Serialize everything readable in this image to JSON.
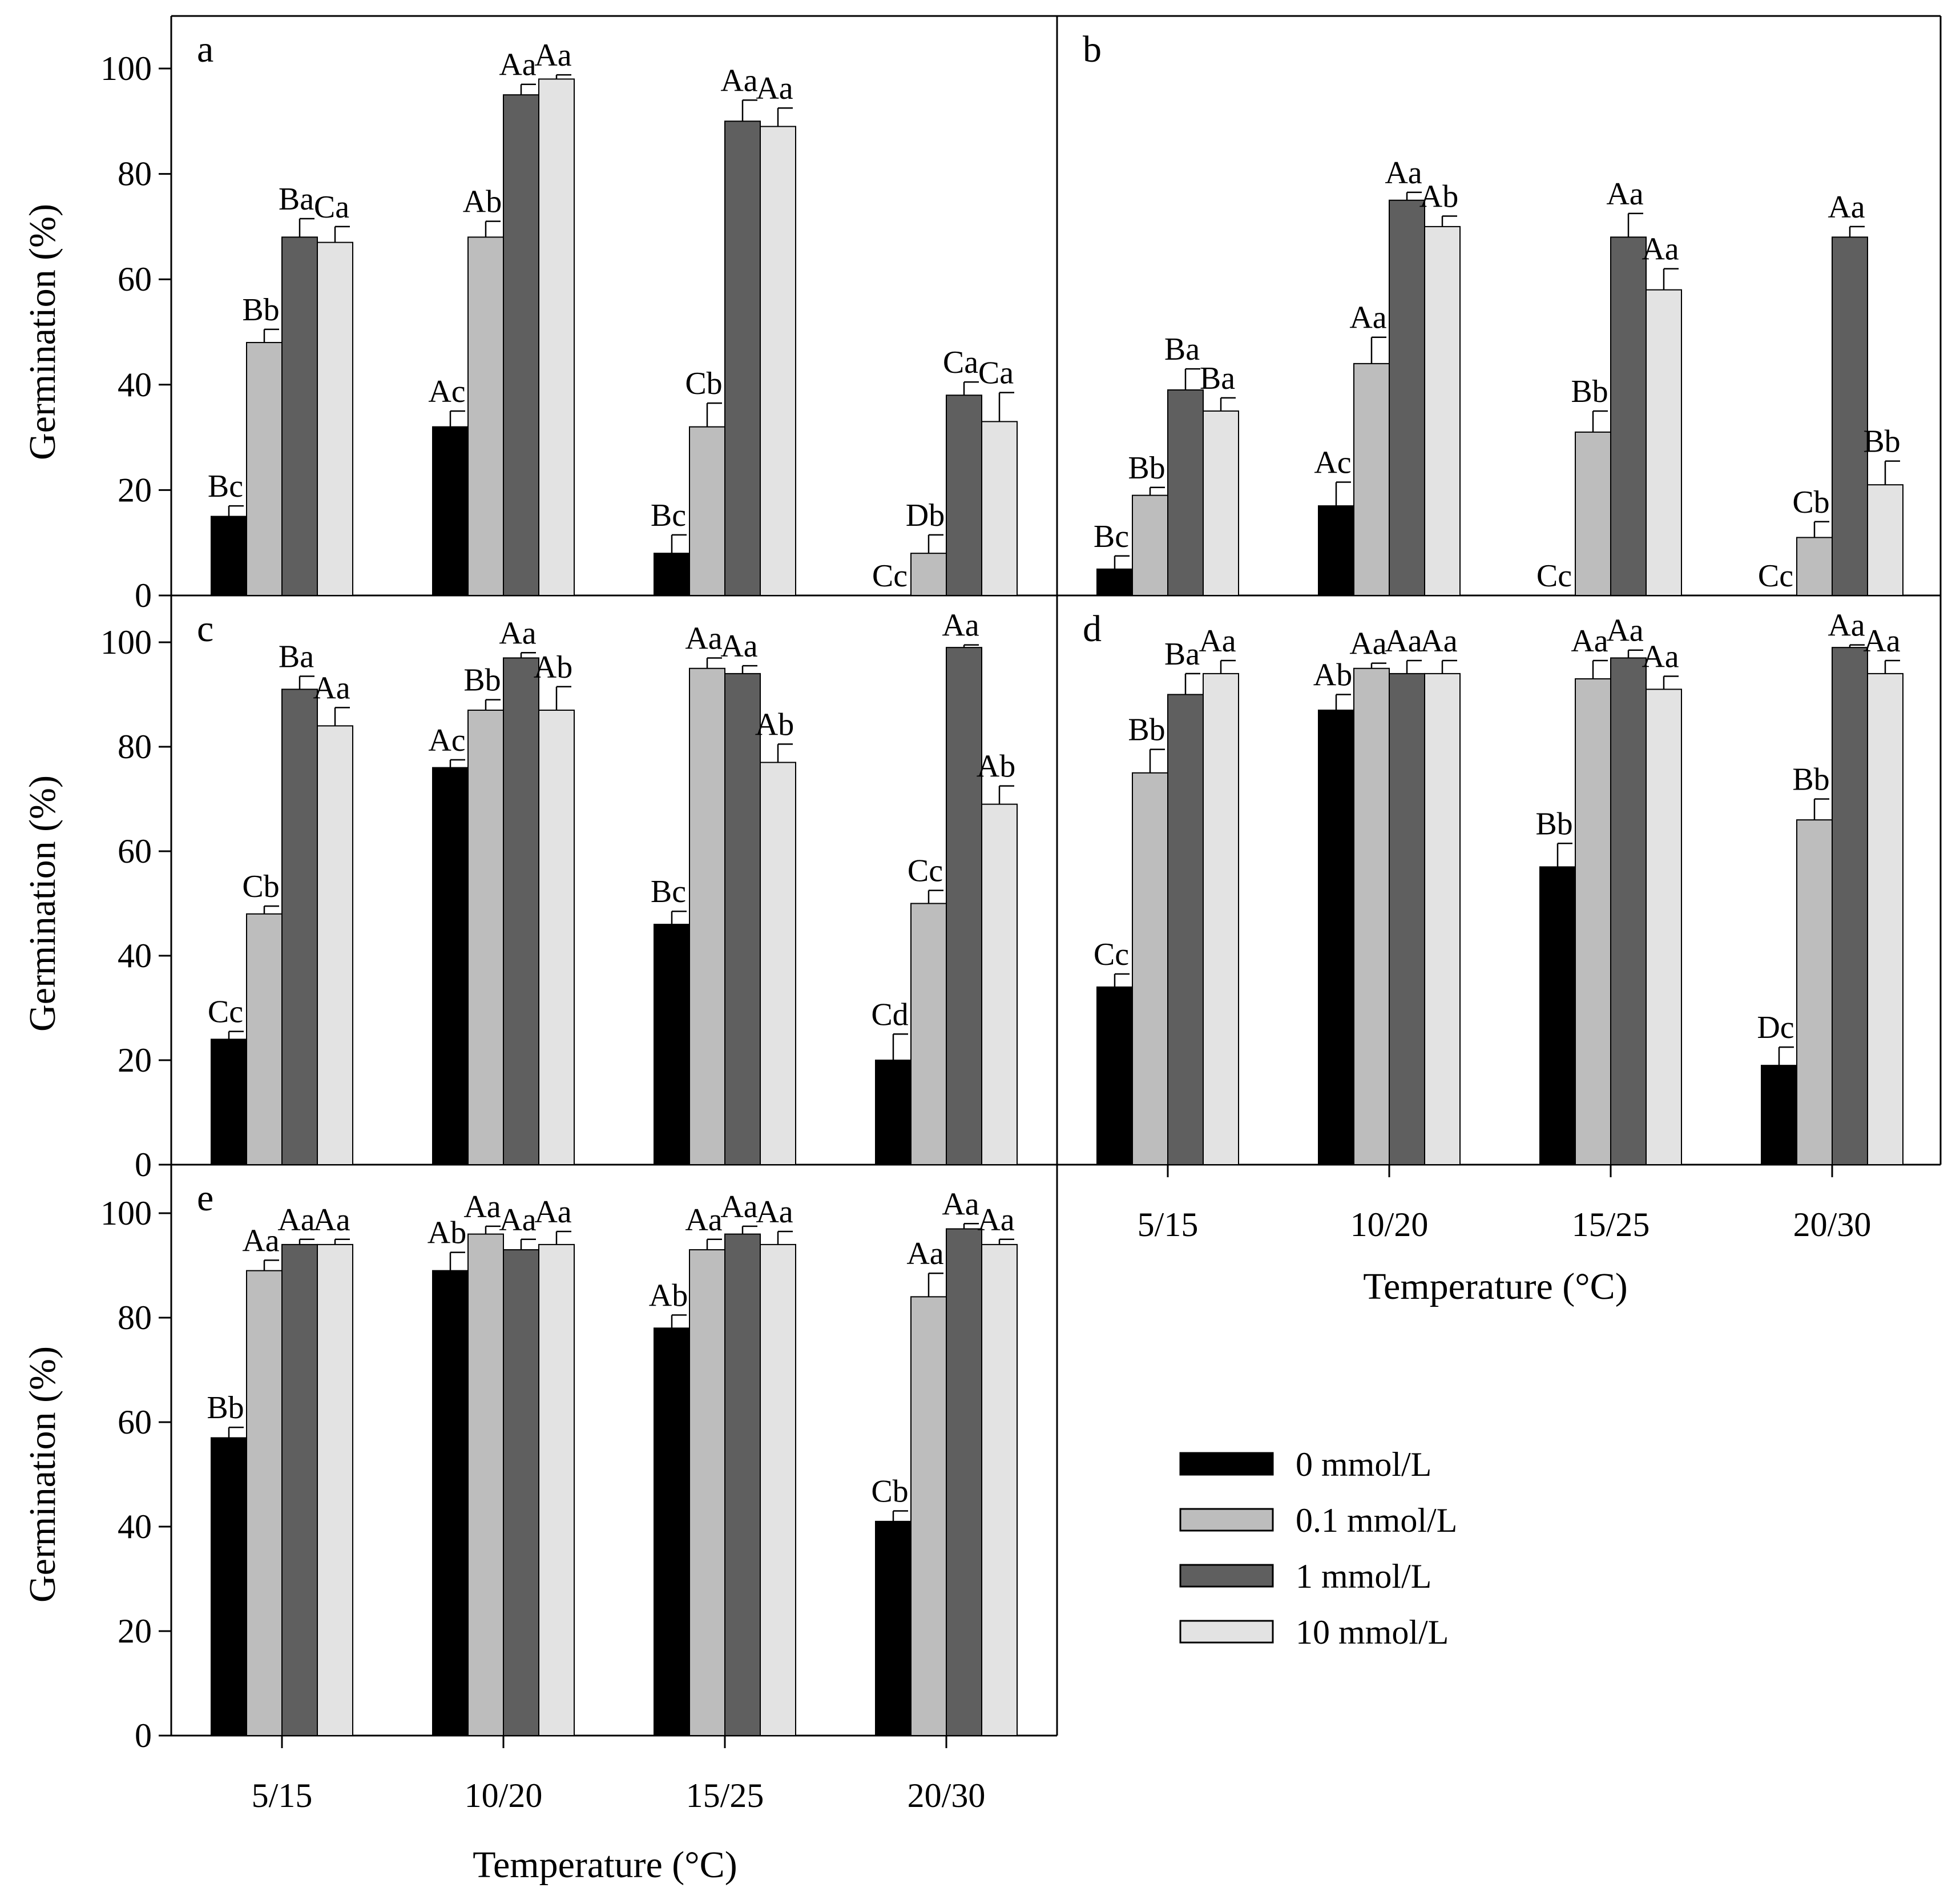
{
  "chart_data": {
    "type": "bar",
    "categories": [
      "5/15",
      "10/20",
      "15/25",
      "20/30"
    ],
    "xlabel": "Temperature (°C)",
    "ylabel": "Germination (%)",
    "ylim": [
      0,
      100
    ],
    "yticks": [
      "0",
      "20",
      "40",
      "60",
      "80",
      "100"
    ],
    "legend": {
      "placement": "lower-right",
      "entries": [
        "0 mmol/L",
        "0.1 mmol/L",
        "1 mmol/L",
        "10 mmol/L"
      ]
    },
    "series_colors": [
      "#000000",
      "#bdbdbd",
      "#5f5f5f",
      "#e3e3e3"
    ],
    "panels": [
      {
        "label": "a",
        "values": [
          [
            15,
            48,
            68,
            67
          ],
          [
            32,
            68,
            95,
            98
          ],
          [
            8,
            32,
            90,
            89
          ],
          [
            0,
            8,
            38,
            33
          ]
        ],
        "errors": [
          [
            2,
            2.5,
            3.5,
            3
          ],
          [
            3,
            3,
            2,
            0.8
          ],
          [
            3.5,
            4.5,
            4,
            3.5
          ],
          [
            0,
            3.5,
            2.5,
            5.5
          ]
        ],
        "letters": [
          [
            "Bc",
            "Bb",
            "Ba",
            "Ca"
          ],
          [
            "Ac",
            "Ab",
            "Aa",
            "Aa"
          ],
          [
            "Bc",
            "Cb",
            "Aa",
            "Aa"
          ],
          [
            "Cc",
            "Db",
            "Ca",
            "Ca"
          ]
        ]
      },
      {
        "label": "b",
        "values": [
          [
            5,
            19,
            39,
            35
          ],
          [
            17,
            44,
            75,
            70
          ],
          [
            0,
            31,
            68,
            58
          ],
          [
            0,
            11,
            68,
            21
          ]
        ],
        "errors": [
          [
            2.5,
            1.5,
            4,
            2.5
          ],
          [
            4.5,
            5,
            1.5,
            2
          ],
          [
            0,
            4,
            4.5,
            4
          ],
          [
            0,
            3,
            2,
            4.5
          ]
        ],
        "letters": [
          [
            "Bc",
            "Bb",
            "Ba",
            "Ba"
          ],
          [
            "Ac",
            "Aa",
            "Aa",
            "Ab"
          ],
          [
            "Cc",
            "Bb",
            "Aa",
            "Aa"
          ],
          [
            "Cc",
            "Cb",
            "Aa",
            "Bb"
          ]
        ]
      },
      {
        "label": "c",
        "values": [
          [
            24,
            48,
            91,
            84
          ],
          [
            76,
            87,
            97,
            87
          ],
          [
            46,
            95,
            94,
            77
          ],
          [
            20,
            50,
            99,
            69
          ]
        ],
        "errors": [
          [
            1.5,
            1.5,
            2.5,
            3.5
          ],
          [
            1.5,
            2,
            1,
            4.5
          ],
          [
            2.5,
            2,
            1.5,
            3.5
          ],
          [
            5,
            2.5,
            0.5,
            3.5
          ]
        ],
        "letters": [
          [
            "Cc",
            "Cb",
            "Ba",
            "Aa"
          ],
          [
            "Ac",
            "Bb",
            "Aa",
            "Ab"
          ],
          [
            "Bc",
            "Aa",
            "Aa",
            "Ab"
          ],
          [
            "Cd",
            "Cc",
            "Aa",
            "Ab"
          ]
        ]
      },
      {
        "label": "d",
        "values": [
          [
            34,
            75,
            90,
            94
          ],
          [
            87,
            95,
            94,
            94
          ],
          [
            57,
            93,
            97,
            91
          ],
          [
            19,
            66,
            99,
            94
          ]
        ],
        "errors": [
          [
            2.5,
            4.5,
            4,
            2.5
          ],
          [
            3,
            1,
            2.5,
            2.5
          ],
          [
            4.5,
            3.5,
            1.5,
            2.5
          ],
          [
            3.5,
            4,
            0.5,
            2.5
          ]
        ],
        "letters": [
          [
            "Cc",
            "Bb",
            "Ba",
            "Aa"
          ],
          [
            "Ab",
            "Aa",
            "Aa",
            "Aa"
          ],
          [
            "Bb",
            "Aa",
            "Aa",
            "Aa"
          ],
          [
            "Dc",
            "Bb",
            "Aa",
            "Aa"
          ]
        ]
      },
      {
        "label": "e",
        "values": [
          [
            57,
            89,
            94,
            94
          ],
          [
            89,
            96,
            93,
            94
          ],
          [
            78,
            93,
            96,
            94
          ],
          [
            41,
            84,
            97,
            94
          ]
        ],
        "errors": [
          [
            2,
            2,
            1,
            1
          ],
          [
            3.5,
            1.5,
            2,
            2.5
          ],
          [
            2.5,
            2,
            1.5,
            2.5
          ],
          [
            2,
            4.5,
            1,
            1
          ]
        ],
        "letters": [
          [
            "Bb",
            "Aa",
            "Aa",
            "Aa"
          ],
          [
            "Ab",
            "Aa",
            "Aa",
            "Aa"
          ],
          [
            "Ab",
            "Aa",
            "Aa",
            "Aa"
          ],
          [
            "Cb",
            "Aa",
            "Aa",
            "Aa"
          ]
        ]
      }
    ]
  }
}
